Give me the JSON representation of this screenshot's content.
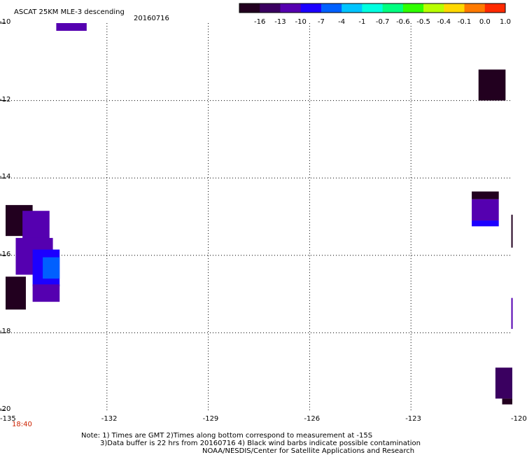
{
  "header": {
    "title": "ASCAT 25KM MLE-3 descending",
    "date": "20160716"
  },
  "colorbar": {
    "colors": [
      "#22001f",
      "#3a0060",
      "#5500b0",
      "#1c00ff",
      "#0060ff",
      "#00c4ff",
      "#00ffe0",
      "#00ff80",
      "#30ff00",
      "#b8ff00",
      "#ffd800",
      "#ff7a00",
      "#ff2a00"
    ],
    "ticks": [
      "-16",
      "-13",
      "-10",
      "-7",
      "-4",
      "-1",
      "-0.7",
      "-0.6",
      "-0.5",
      "-0.4",
      "-0.1",
      "0.0",
      "1.0"
    ]
  },
  "map": {
    "lon_ticks": [
      "-135",
      "-132",
      "-129",
      "-126",
      "-123",
      "-120"
    ],
    "lat_ticks": [
      "-10",
      "-12",
      "-14",
      "-16",
      "-18",
      "-20"
    ],
    "lon_range": [
      -135,
      -120
    ],
    "lat_range": [
      -20,
      -10
    ],
    "gridlines": true,
    "time_label": "18:40",
    "time_color": "#cc2200"
  },
  "footer": {
    "note_line1": "Note: 1) Times are GMT 2)Times along bottom correspond to measurement at -15S",
    "note_line2": "3)Data buffer is 22 hrs from 20160716 4) Black wind barbs indicate possible contamination",
    "credit": "NOAA/NESDIS/Center for Satellite Applications and Research"
  },
  "swath_colors": {
    "dark": "#22001f",
    "violet": "#5500b0",
    "indigo": "#3a0060",
    "blue": "#1c00ff",
    "lightblue": "#0060ff"
  }
}
